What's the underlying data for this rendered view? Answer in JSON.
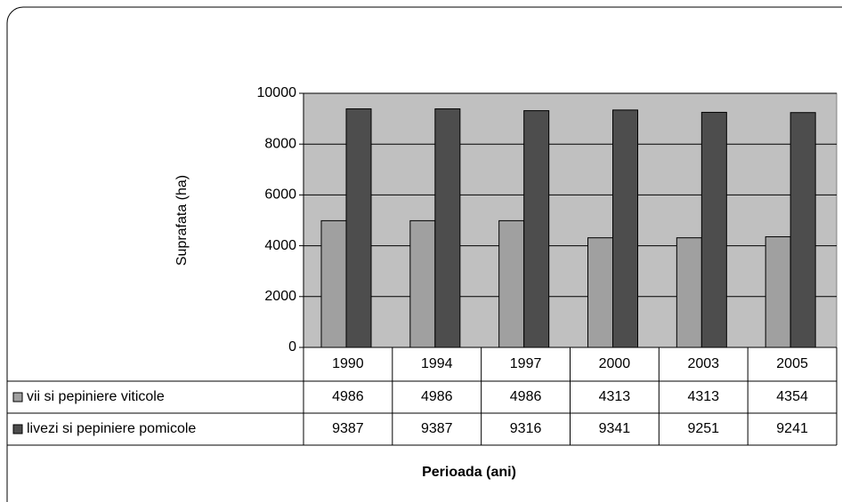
{
  "chart_data": {
    "type": "bar",
    "y_label": "Suprafata (ha)",
    "x_label": "Perioada (ani)",
    "categories": [
      "1990",
      "1994",
      "1997",
      "2000",
      "2003",
      "2005"
    ],
    "series": [
      {
        "name": "vii si pepiniere viticole",
        "color": "#a0a0a0",
        "values": [
          4986,
          4986,
          4986,
          4313,
          4313,
          4354
        ]
      },
      {
        "name": "livezi si pepiniere pomicole",
        "color": "#4d4d4d",
        "values": [
          9387,
          9387,
          9316,
          9341,
          9251,
          9241
        ]
      }
    ],
    "ylim": [
      0,
      10000
    ],
    "yticks": [
      0,
      2000,
      4000,
      6000,
      8000,
      10000
    ],
    "grid": true,
    "plot_background": "#c0c0c0"
  }
}
